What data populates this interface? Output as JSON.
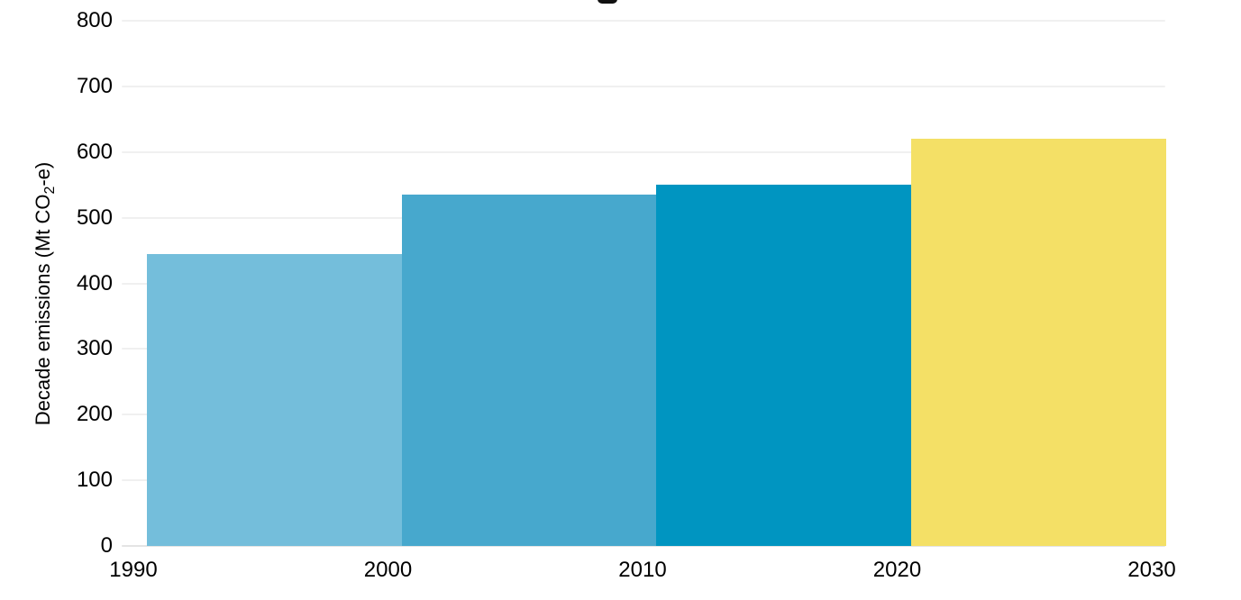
{
  "chart_data": {
    "type": "bar",
    "title": "",
    "title_cropped_glyph": "partial descender of cropped-off chart title at top edge",
    "categories": [
      "1990-2000",
      "2000-2010",
      "2010-2020",
      "2020-2030"
    ],
    "values": [
      445,
      535,
      550,
      620
    ],
    "bar_colors": [
      "#74bedb",
      "#47a8cd",
      "#0095c1",
      "#f4e066"
    ],
    "x_boundary_labels": [
      "1990",
      "2000",
      "2010",
      "2020",
      "2030"
    ],
    "xlabel": "",
    "ylabel": "Decade emissions (Mt CO2-e)",
    "ylabel_parts": {
      "pre": "Decade emissions (Mt CO",
      "sub": "2",
      "post": "-e)"
    },
    "ylim": [
      0,
      800
    ],
    "ytick_step": 100,
    "yticks": [
      0,
      100,
      200,
      300,
      400,
      500,
      600,
      700,
      800
    ],
    "grid": true,
    "legend": false,
    "bars_contiguous": true,
    "colors": {
      "gridline": "#f0f0f0",
      "baseline": "#e4e4e4",
      "text": "#000000",
      "background": "#ffffff"
    }
  }
}
